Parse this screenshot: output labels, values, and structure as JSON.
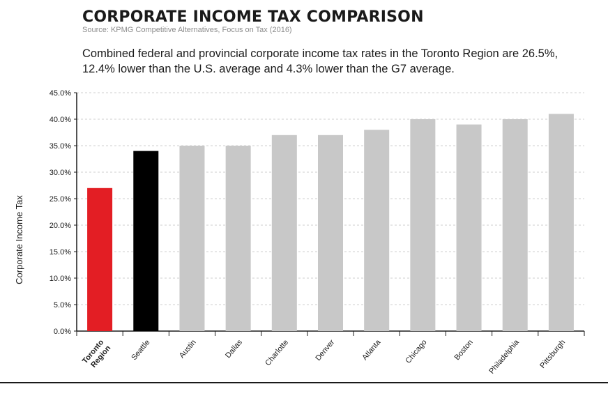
{
  "header": {
    "title": "CORPORATE INCOME TAX COMPARISON",
    "source": "Source: KPMG Competitive Alternatives, Focus on Tax (2016)",
    "subtitle": "Combined federal and provincial corporate income tax rates in the Toronto Region are 26.5%, 12.4% lower than the U.S. average and 4.3% lower than the G7 average."
  },
  "chart_data": {
    "type": "bar",
    "categories": [
      "Toronto Region",
      "Seattle",
      "Austin",
      "Dallas",
      "Charlotte",
      "Denver",
      "Atlanta",
      "Chicago",
      "Boston",
      "Philadelphia",
      "Pittsburgh"
    ],
    "category_lines": [
      [
        "Toronto",
        "Region"
      ],
      [
        "Seattle"
      ],
      [
        "Austin"
      ],
      [
        "Dallas"
      ],
      [
        "Charlotte"
      ],
      [
        "Denver"
      ],
      [
        "Atlanta"
      ],
      [
        "Chicago"
      ],
      [
        "Boston"
      ],
      [
        "Philadelphia"
      ],
      [
        "Pittsburgh"
      ]
    ],
    "values": [
      27.0,
      34.0,
      35.0,
      35.0,
      37.0,
      37.0,
      38.0,
      40.0,
      39.0,
      40.0,
      41.0
    ],
    "bar_colors": [
      "#e31e24",
      "#000000",
      "#c8c8c8",
      "#c8c8c8",
      "#c8c8c8",
      "#c8c8c8",
      "#c8c8c8",
      "#c8c8c8",
      "#c8c8c8",
      "#c8c8c8",
      "#c8c8c8"
    ],
    "label_colors": [
      "#e31e24",
      "#1a1a1a",
      "#1a1a1a",
      "#1a1a1a",
      "#1a1a1a",
      "#1a1a1a",
      "#1a1a1a",
      "#1a1a1a",
      "#1a1a1a",
      "#1a1a1a",
      "#1a1a1a"
    ],
    "highlight_label_bold": [
      true,
      false,
      false,
      false,
      false,
      false,
      false,
      false,
      false,
      false,
      false
    ],
    "ylabel": "Corporate Income Tax",
    "xlabel": "",
    "ylim": [
      0,
      45
    ],
    "yticks": [
      0,
      5,
      10,
      15,
      20,
      25,
      30,
      35,
      40,
      45
    ],
    "ytick_labels": [
      "0.0%",
      "5.0%",
      "10.0%",
      "15.0%",
      "20.0%",
      "25.0%",
      "30.0%",
      "35.0%",
      "40.0%",
      "45.0%"
    ],
    "grid": true,
    "grid_style": "dashed",
    "legend": "none"
  }
}
